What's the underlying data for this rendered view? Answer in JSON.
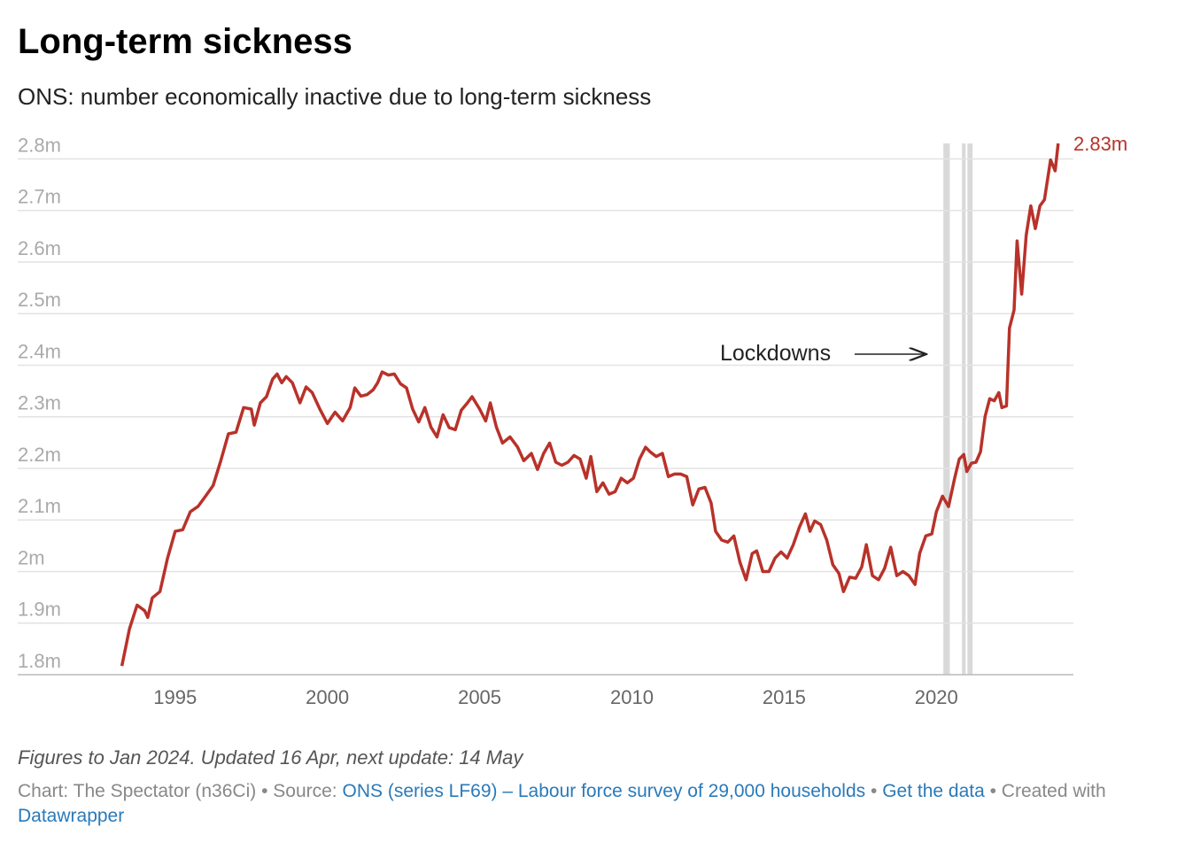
{
  "chart_data": {
    "type": "line",
    "title": "Long-term sickness",
    "subtitle": "ONS: number economically inactive due to long-term sickness",
    "annotation": "Lockdowns",
    "x": [
      1993.25,
      1993.5,
      1993.75,
      1994.0,
      1994.1,
      1994.25,
      1994.5,
      1994.75,
      1995.0,
      1995.25,
      1995.5,
      1995.75,
      1996.0,
      1996.25,
      1996.5,
      1996.75,
      1997.0,
      1997.25,
      1997.5,
      1997.6,
      1997.8,
      1998.0,
      1998.2,
      1998.35,
      1998.5,
      1998.65,
      1998.85,
      1999.1,
      1999.3,
      1999.5,
      1999.75,
      2000.0,
      2000.25,
      2000.5,
      2000.75,
      2000.9,
      2001.1,
      2001.3,
      2001.5,
      2001.65,
      2001.8,
      2002.0,
      2002.2,
      2002.4,
      2002.6,
      2002.8,
      2003.0,
      2003.2,
      2003.4,
      2003.6,
      2003.8,
      2004.0,
      2004.2,
      2004.4,
      2004.6,
      2004.75,
      2005.0,
      2005.2,
      2005.35,
      2005.55,
      2005.75,
      2006.0,
      2006.25,
      2006.45,
      2006.7,
      2006.9,
      2007.1,
      2007.3,
      2007.5,
      2007.7,
      2007.9,
      2008.1,
      2008.3,
      2008.5,
      2008.65,
      2008.85,
      2009.05,
      2009.25,
      2009.45,
      2009.65,
      2009.85,
      2010.05,
      2010.25,
      2010.45,
      2010.6,
      2010.8,
      2011.0,
      2011.2,
      2011.4,
      2011.6,
      2011.8,
      2012.0,
      2012.2,
      2012.4,
      2012.6,
      2012.75,
      2012.95,
      2013.15,
      2013.35,
      2013.55,
      2013.75,
      2013.95,
      2014.1,
      2014.3,
      2014.5,
      2014.7,
      2014.9,
      2015.1,
      2015.3,
      2015.5,
      2015.7,
      2015.85,
      2016.0,
      2016.2,
      2016.4,
      2016.6,
      2016.8,
      2016.95,
      2017.15,
      2017.35,
      2017.55,
      2017.7,
      2017.9,
      2018.1,
      2018.3,
      2018.5,
      2018.7,
      2018.9,
      2019.1,
      2019.3,
      2019.45,
      2019.65,
      2019.85,
      2020.0,
      2020.2,
      2020.4,
      2020.6,
      2020.75,
      2020.9,
      2021.0,
      2021.15,
      2021.3,
      2021.45,
      2021.6,
      2021.75,
      2021.9,
      2022.05,
      2022.15,
      2022.3,
      2022.4,
      2022.55,
      2022.65,
      2022.8,
      2022.95,
      2023.1,
      2023.25,
      2023.4,
      2023.55,
      2023.75,
      2023.9,
      2024.0
    ],
    "series": [
      {
        "color": "#b8322a",
        "values": [
          1.817,
          1.889,
          1.935,
          1.924,
          1.911,
          1.949,
          1.961,
          2.026,
          2.078,
          2.081,
          2.116,
          2.126,
          2.146,
          2.167,
          2.215,
          2.267,
          2.27,
          2.318,
          2.315,
          2.284,
          2.327,
          2.339,
          2.373,
          2.383,
          2.366,
          2.378,
          2.366,
          2.327,
          2.358,
          2.347,
          2.315,
          2.287,
          2.309,
          2.292,
          2.318,
          2.356,
          2.34,
          2.343,
          2.352,
          2.366,
          2.387,
          2.381,
          2.383,
          2.364,
          2.356,
          2.315,
          2.29,
          2.318,
          2.28,
          2.261,
          2.304,
          2.279,
          2.275,
          2.313,
          2.327,
          2.339,
          2.315,
          2.292,
          2.327,
          2.28,
          2.249,
          2.261,
          2.241,
          2.215,
          2.229,
          2.198,
          2.229,
          2.249,
          2.212,
          2.206,
          2.212,
          2.225,
          2.218,
          2.181,
          2.223,
          2.155,
          2.172,
          2.15,
          2.155,
          2.181,
          2.172,
          2.181,
          2.218,
          2.241,
          2.232,
          2.223,
          2.229,
          2.184,
          2.189,
          2.189,
          2.184,
          2.129,
          2.16,
          2.163,
          2.133,
          2.078,
          2.061,
          2.057,
          2.069,
          2.018,
          1.984,
          2.035,
          2.04,
          2.0,
          2.0,
          2.026,
          2.038,
          2.026,
          2.052,
          2.086,
          2.112,
          2.078,
          2.098,
          2.091,
          2.061,
          2.013,
          1.996,
          1.961,
          1.989,
          1.987,
          2.009,
          2.052,
          1.992,
          1.984,
          2.006,
          2.047,
          1.992,
          2.0,
          1.992,
          1.975,
          2.035,
          2.069,
          2.073,
          2.116,
          2.146,
          2.126,
          2.181,
          2.218,
          2.227,
          2.194,
          2.21,
          2.212,
          2.232,
          2.301,
          2.335,
          2.331,
          2.347,
          2.318,
          2.321,
          2.472,
          2.507,
          2.641,
          2.538,
          2.652,
          2.709,
          2.665,
          2.709,
          2.721,
          2.798,
          2.777,
          2.83
        ],
        "end_label": "2.83m"
      }
    ],
    "shaded_periods": [
      [
        2020.23,
        2020.44
      ],
      [
        2020.84,
        2020.96
      ],
      [
        2021.02,
        2021.19
      ]
    ],
    "shade_color": "#d9d9d9",
    "xlim": [
      1989.83,
      2024.5
    ],
    "xticks": [
      1995,
      2000,
      2005,
      2010,
      2015,
      2020
    ],
    "ylim": [
      1.8,
      2.83
    ],
    "yticks": [
      {
        "value": 1.8,
        "label": "1.8m"
      },
      {
        "value": 1.9,
        "label": "1.9m"
      },
      {
        "value": 2.0,
        "label": "2m"
      },
      {
        "value": 2.1,
        "label": "2.1m"
      },
      {
        "value": 2.2,
        "label": "2.2m"
      },
      {
        "value": 2.3,
        "label": "2.3m"
      },
      {
        "value": 2.4,
        "label": "2.4m"
      },
      {
        "value": 2.5,
        "label": "2.5m"
      },
      {
        "value": 2.6,
        "label": "2.6m"
      },
      {
        "value": 2.7,
        "label": "2.7m"
      },
      {
        "value": 2.8,
        "label": "2.8m"
      }
    ],
    "grid": true,
    "note": "Figures to Jan 2024. Updated 16 Apr, next update: 14 May",
    "credits": [
      {
        "text": "Chart: The Spectator (n36Ci) • Source:",
        "link": false
      },
      {
        "text": "ONS (series LF69) – Labour force survey of 29,000 households",
        "link": true
      },
      {
        "text": "•",
        "link": false
      },
      {
        "text": "Get the data",
        "link": true
      },
      {
        "text": "• Created with",
        "link": false
      },
      {
        "text": "Datawrapper",
        "link": true
      }
    ]
  }
}
